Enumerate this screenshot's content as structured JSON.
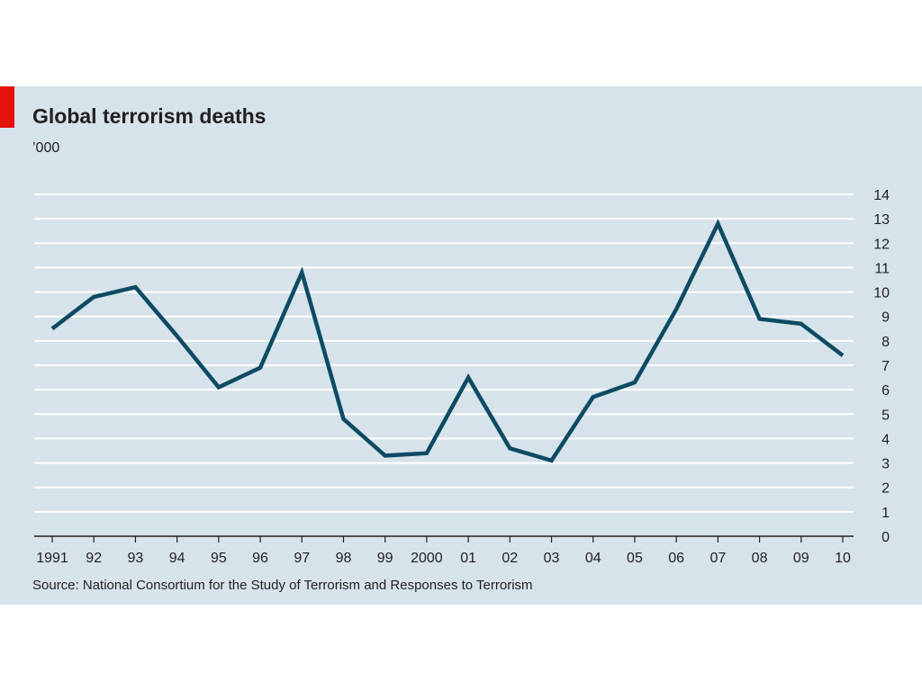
{
  "title": "Global terrorism deaths",
  "unit_label": "’000",
  "source": "Source: National Consortium for the Study of Terrorism and Responses to Terrorism",
  "colors": {
    "background": "#d6e3ea",
    "accent": "#e3120b",
    "line": "#0e4b63",
    "grid": "#ffffff"
  },
  "chart_data": {
    "type": "line",
    "title": "Global terrorism deaths",
    "ylabel": "’000",
    "xlabel": "",
    "categories": [
      "1991",
      "92",
      "93",
      "94",
      "95",
      "96",
      "97",
      "98",
      "99",
      "2000",
      "01",
      "02",
      "03",
      "04",
      "05",
      "06",
      "07",
      "08",
      "09",
      "10"
    ],
    "series": [
      {
        "values": [
          8.5,
          9.8,
          10.2,
          8.2,
          6.1,
          6.9,
          10.8,
          4.8,
          3.3,
          3.4,
          6.5,
          3.6,
          3.1,
          5.7,
          6.3,
          9.3,
          12.8,
          8.9,
          8.7,
          7.4
        ]
      }
    ],
    "ylim": [
      0,
      14
    ],
    "yticks": [
      "0",
      "1",
      "2",
      "3",
      "4",
      "5",
      "6",
      "7",
      "8",
      "9",
      "10",
      "11",
      "12",
      "13",
      "14"
    ],
    "y_axis_position": "right",
    "grid": true,
    "legend": "none"
  }
}
